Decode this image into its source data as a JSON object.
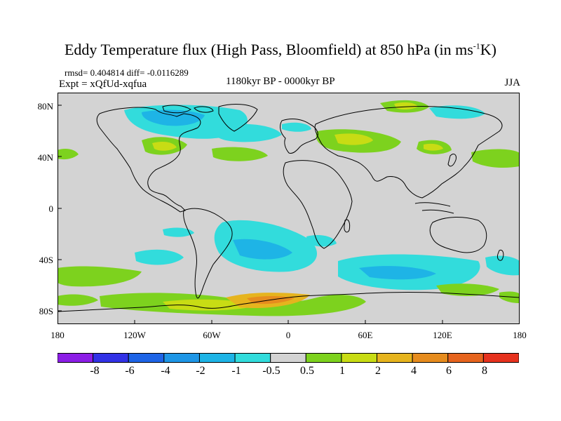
{
  "title_main": "Eddy Temperature flux (High Pass, Bloomfield) at 850 hPa (in ms",
  "title_sup": "-1",
  "title_end": "K)",
  "stats": {
    "rmsd": "rmsd= 0.404814 diff= -0.0116289",
    "expt": "Expt = xQfUd-xqfua",
    "period": "1180kyr BP - 0000kyr BP",
    "season": "JJA"
  },
  "y_ticks": [
    "80N",
    "40N",
    "0",
    "40S",
    "80S"
  ],
  "x_ticks": [
    "180",
    "120W",
    "60W",
    "0",
    "60E",
    "120E",
    "180"
  ],
  "colorbar": {
    "labels": [
      "-8",
      "-6",
      "-4",
      "-2",
      "-1",
      "-0.5",
      "0.5",
      "1",
      "2",
      "4",
      "6",
      "8"
    ],
    "colors": [
      "#8c1ee6",
      "#3232e6",
      "#1e64e6",
      "#1e96e6",
      "#1eb4e6",
      "#32dcdc",
      "#d3d3d3",
      "#7dd21e",
      "#c8dc14",
      "#e6b41e",
      "#e68c1e",
      "#e6641e",
      "#e6321e"
    ]
  },
  "map_colors": {
    "ocean_neutral": "#d3d3d3",
    "coast": "#000000"
  }
}
